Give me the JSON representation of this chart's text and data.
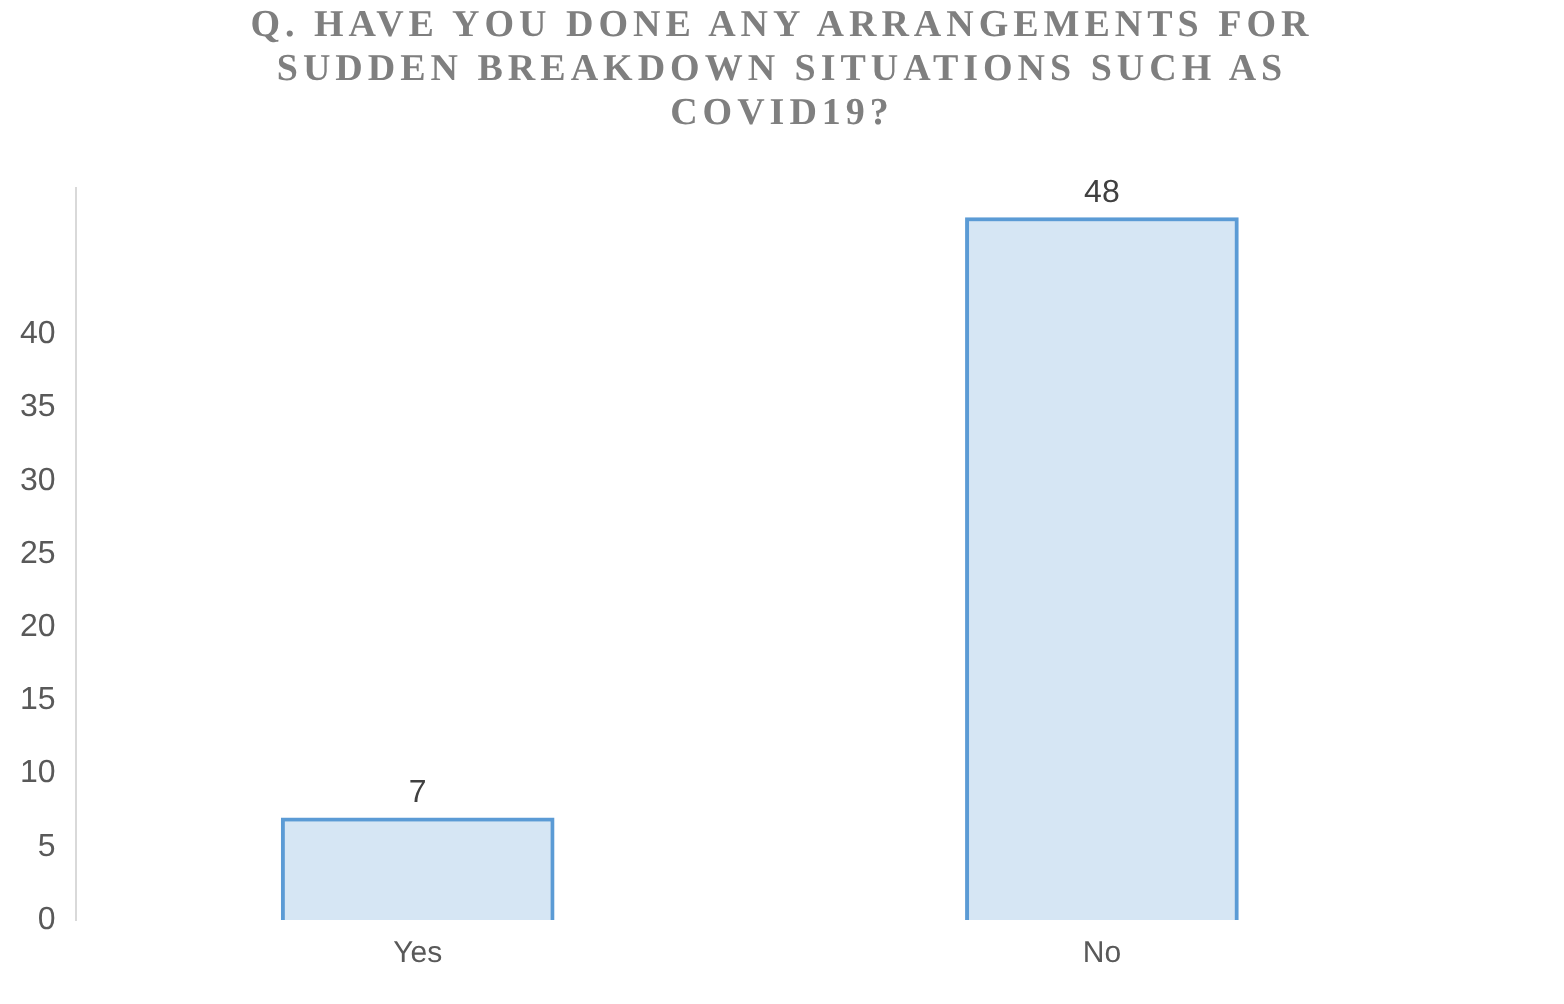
{
  "chart_data": {
    "type": "bar",
    "title": "Q. HAVE YOU DONE ANY ARRANGEMENTS FOR SUDDEN BREAKDOWN SITUATIONS SUCH AS COVID19?",
    "categories": [
      "Yes",
      "No"
    ],
    "values": [
      7,
      48
    ],
    "data_labels": true,
    "color": "#5b9bd5",
    "ylim": [
      0,
      50
    ],
    "yticks": [
      0,
      5,
      10,
      15,
      20,
      25,
      30,
      35,
      40
    ],
    "grid": false
  }
}
